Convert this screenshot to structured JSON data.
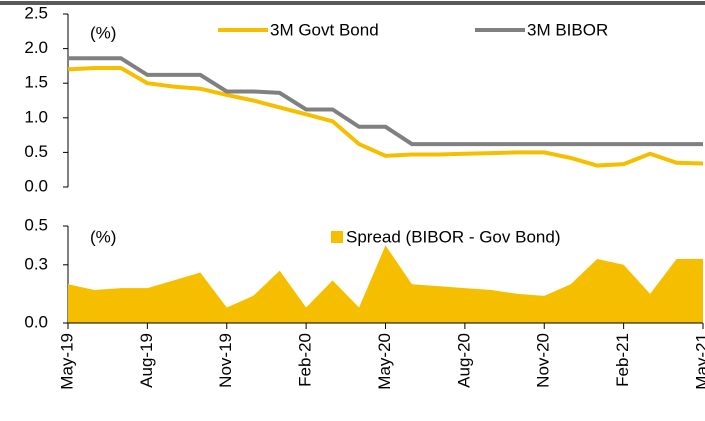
{
  "chart_data": [
    {
      "type": "line",
      "annotation": "(%)",
      "series": [
        {
          "name": "3M Govt Bond",
          "color": "#f5bf00",
          "values": [
            1.7,
            1.72,
            1.72,
            1.5,
            1.45,
            1.42,
            1.33,
            1.25,
            1.15,
            1.05,
            0.95,
            0.62,
            0.45,
            0.47,
            0.47,
            0.48,
            0.49,
            0.5,
            0.5,
            0.42,
            0.31,
            0.33,
            0.48,
            0.35,
            0.34
          ]
        },
        {
          "name": "3M BIBOR",
          "color": "#808080",
          "values": [
            1.86,
            1.86,
            1.86,
            1.62,
            1.62,
            1.62,
            1.38,
            1.38,
            1.36,
            1.12,
            1.12,
            0.87,
            0.87,
            0.62,
            0.62,
            0.62,
            0.62,
            0.62,
            0.62,
            0.62,
            0.62,
            0.62,
            0.62,
            0.62,
            0.62
          ]
        }
      ],
      "ylim": [
        0,
        2.5
      ],
      "yticks": [
        {
          "value": 0,
          "label": "0.0"
        },
        0.5,
        {
          "value": 1,
          "label": "1.0"
        },
        1.5,
        {
          "value": 2,
          "label": "2.0"
        },
        2.5
      ]
    },
    {
      "type": "area",
      "annotation": "(%)",
      "categories": [
        "May-19",
        null,
        null,
        "Aug-19",
        null,
        null,
        "Nov-19",
        null,
        null,
        "Feb-20",
        null,
        null,
        "May-20",
        null,
        null,
        "Aug-20",
        null,
        null,
        "Nov-20",
        null,
        null,
        "Feb-21",
        null,
        null,
        "May-21"
      ],
      "series": [
        {
          "name": "Spread (BIBOR - Gov Bond)",
          "color": "#f5bf00",
          "values": [
            0.2,
            0.17,
            0.18,
            0.18,
            0.22,
            0.26,
            0.08,
            0.14,
            0.27,
            0.08,
            0.22,
            0.08,
            0.4,
            0.2,
            0.19,
            0.18,
            0.17,
            0.15,
            0.14,
            0.2,
            0.33,
            0.3,
            0.15,
            0.33,
            0.33
          ]
        }
      ],
      "ylim": [
        0,
        0.5
      ],
      "yticks": [
        {
          "value": 0,
          "label": "0.0"
        },
        0.3,
        0.5
      ]
    }
  ]
}
